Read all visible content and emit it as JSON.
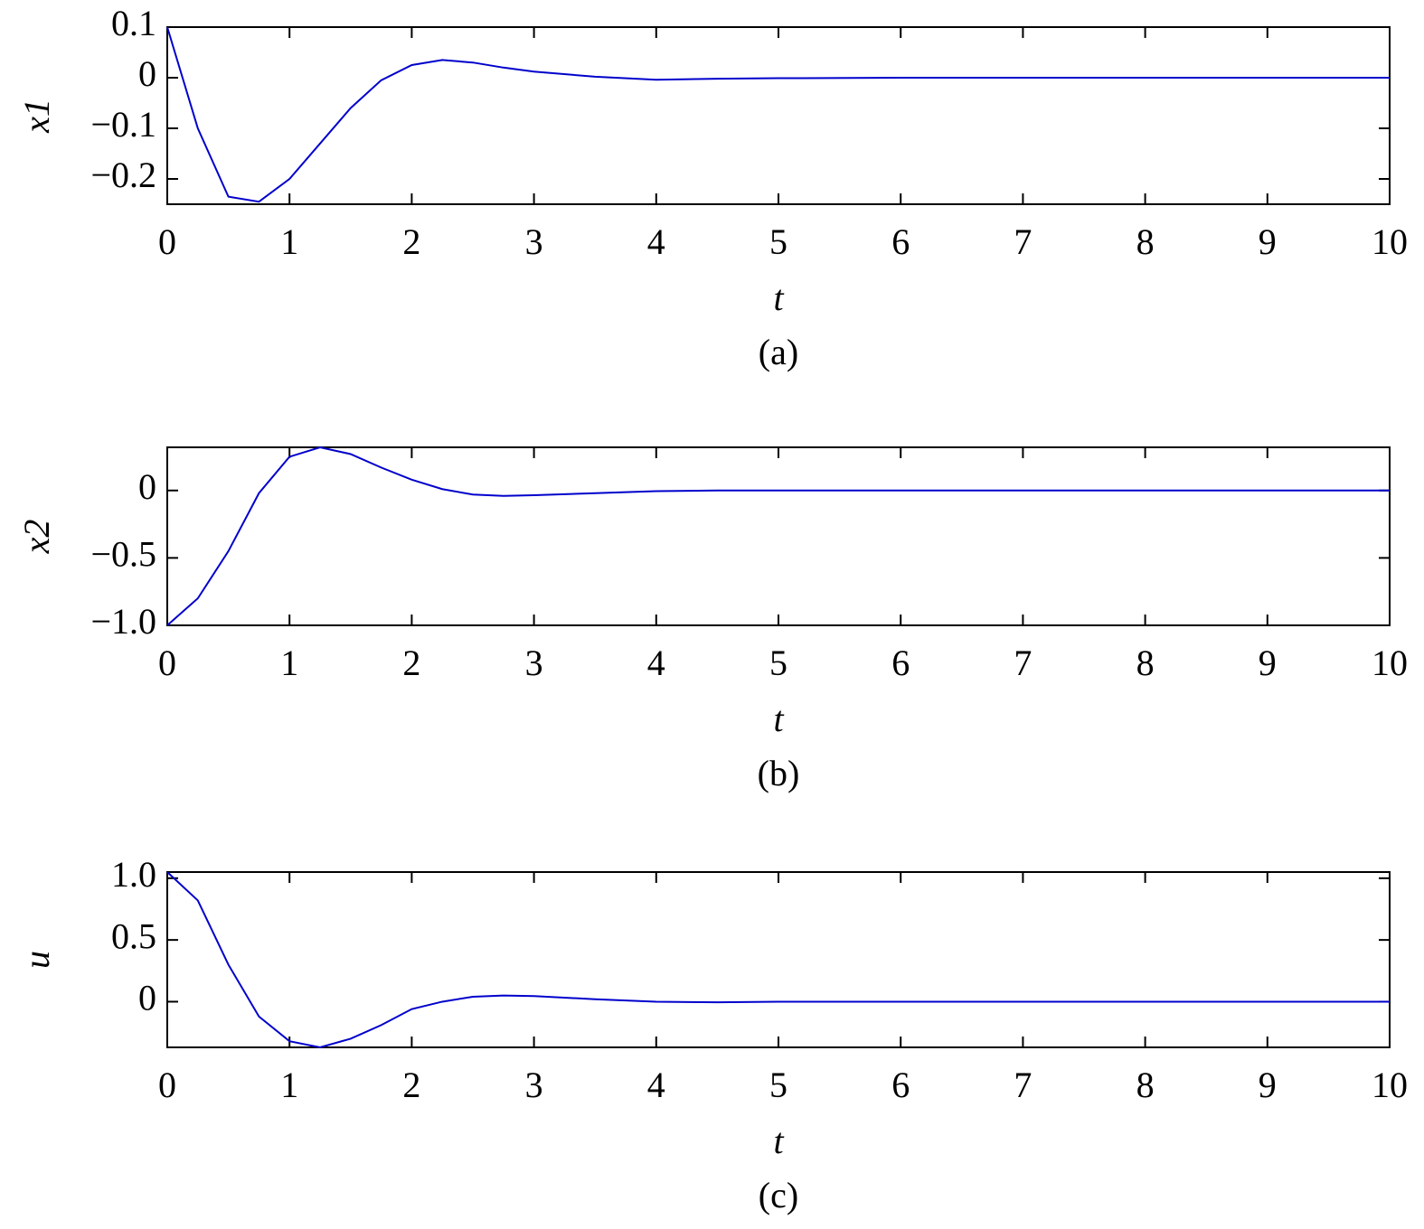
{
  "chart_data": [
    {
      "type": "line",
      "x_label": "t",
      "y_label": "x1",
      "caption": "(a)",
      "x": [
        0,
        0.25,
        0.5,
        0.75,
        1,
        1.25,
        1.5,
        1.75,
        2,
        2.25,
        2.5,
        2.75,
        3,
        3.5,
        4,
        4.5,
        5,
        6,
        7,
        8,
        9,
        10
      ],
      "series": [
        {
          "name": "x1",
          "color": "#0000cc",
          "values": [
            0.1,
            -0.1,
            -0.235,
            -0.245,
            -0.2,
            -0.13,
            -0.06,
            -0.005,
            0.025,
            0.035,
            0.03,
            0.02,
            0.012,
            0.002,
            -0.004,
            -0.002,
            -0.001,
            0,
            0,
            0,
            0,
            0
          ]
        }
      ],
      "xlim": [
        0,
        10
      ],
      "xticks": [
        0,
        1,
        2,
        3,
        4,
        5,
        6,
        7,
        8,
        9,
        10
      ],
      "ylim": [
        -0.25,
        0.1
      ],
      "yticks": [
        {
          "value": 0.1,
          "label": "0.1"
        },
        0,
        {
          "value": -0.1,
          "label": "−0.1"
        },
        {
          "value": -0.2,
          "label": "−0.2"
        }
      ]
    },
    {
      "type": "line",
      "x_label": "t",
      "y_label": "x2",
      "caption": "(b)",
      "x": [
        0,
        0.25,
        0.5,
        0.75,
        1,
        1.25,
        1.5,
        1.75,
        2,
        2.25,
        2.5,
        2.75,
        3,
        3.5,
        4,
        4.5,
        5,
        6,
        7,
        8,
        9,
        10
      ],
      "series": [
        {
          "name": "x2",
          "color": "#0000cc",
          "values": [
            -1.0,
            -0.8,
            -0.45,
            -0.02,
            0.25,
            0.32,
            0.27,
            0.17,
            0.08,
            0.01,
            -0.03,
            -0.04,
            -0.035,
            -0.02,
            -0.005,
            0,
            0,
            0,
            0,
            0,
            0,
            0
          ]
        }
      ],
      "xlim": [
        0,
        10
      ],
      "xticks": [
        0,
        1,
        2,
        3,
        4,
        5,
        6,
        7,
        8,
        9,
        10
      ],
      "ylim": [
        -1.0,
        0.32
      ],
      "yticks": [
        0,
        {
          "value": -0.5,
          "label": "−0.5"
        },
        {
          "value": -1.0,
          "label": "−1.0"
        }
      ]
    },
    {
      "type": "line",
      "x_label": "t",
      "y_label": "u",
      "caption": "(c)",
      "x": [
        0,
        0.25,
        0.5,
        0.75,
        1,
        1.25,
        1.5,
        1.75,
        2,
        2.25,
        2.5,
        2.75,
        3,
        3.5,
        4,
        4.5,
        5,
        6,
        7,
        8,
        9,
        10
      ],
      "series": [
        {
          "name": "u",
          "color": "#0000cc",
          "values": [
            1.05,
            0.82,
            0.3,
            -0.12,
            -0.32,
            -0.37,
            -0.3,
            -0.19,
            -0.06,
            0,
            0.04,
            0.05,
            0.045,
            0.02,
            0,
            -0.005,
            0,
            0,
            0,
            0,
            0,
            0
          ]
        }
      ],
      "xlim": [
        0,
        10
      ],
      "xticks": [
        0,
        1,
        2,
        3,
        4,
        5,
        6,
        7,
        8,
        9,
        10
      ],
      "ylim": [
        -0.37,
        1.05
      ],
      "yticks": [
        {
          "value": 1.0,
          "label": "1.0"
        },
        0.5,
        0
      ]
    }
  ]
}
